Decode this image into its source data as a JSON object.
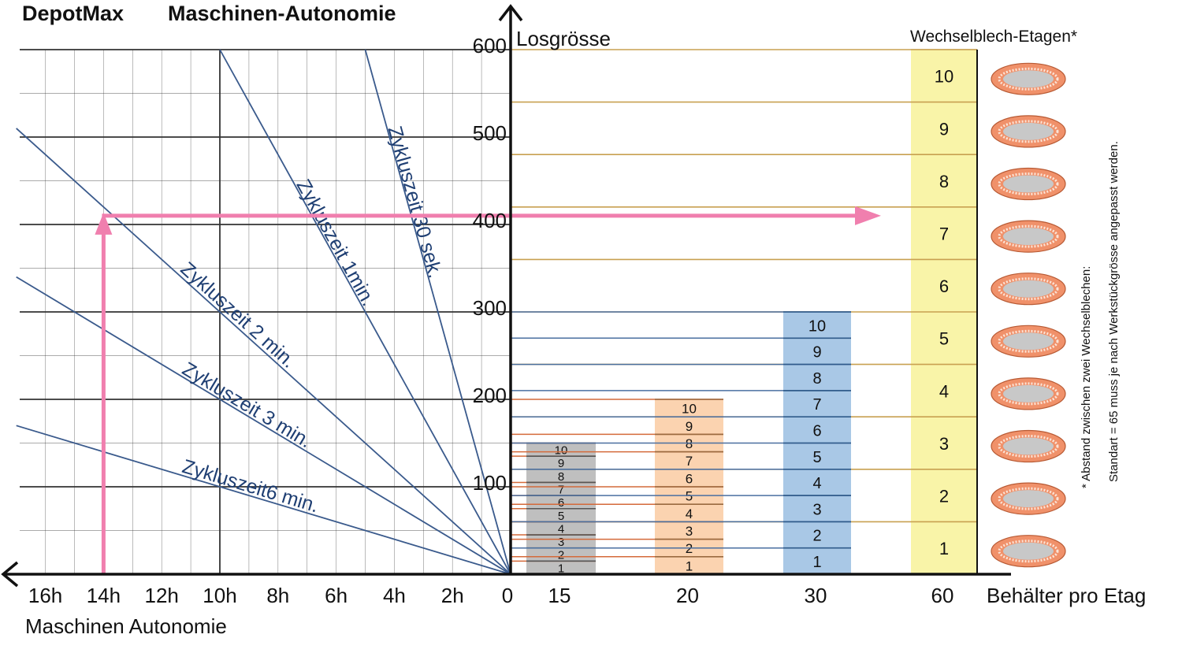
{
  "title": {
    "brand": "DepotMax",
    "subtitle": "Maschinen-Autonomie"
  },
  "colors": {
    "grid": "#333333",
    "slope": "#3a5a8c",
    "slope_text": "#1f3f73",
    "highlight": "#f07fae",
    "gold_line": "#c8a050",
    "orange_line": "#d46a3a",
    "blue_line": "#4a6fa0",
    "stack_15": "#bfbfbf",
    "stack_20": "#fbd3b0",
    "stack_30": "#a9c8e6",
    "stack_60": "#f9f4a8",
    "plate_ring": "#f0916a",
    "plate_center": "#c8c8c8"
  },
  "chart_data": {
    "type": "line",
    "title": "Maschinen-Autonomie",
    "ylabel": "Losgrösse",
    "xlabel_left": "Maschinen Autonomie",
    "xlabel_right": "Behälter pro Etag",
    "ylim": [
      0,
      600
    ],
    "y_ticks": [
      "100",
      "200",
      "300",
      "400",
      "500",
      "600"
    ],
    "x_ticks_left": [
      "16h",
      "14h",
      "12h",
      "10h",
      "8h",
      "6h",
      "4h",
      "2h",
      "0"
    ],
    "x_ticks_left_values": [
      16,
      14,
      12,
      10,
      8,
      6,
      4,
      2,
      0
    ],
    "series": [
      {
        "name": "Zykluszeit 30 sek.",
        "cycle_min": 0.5,
        "x_hours": [
          0,
          5
        ],
        "y": [
          0,
          600
        ]
      },
      {
        "name": "Zykluszeit 1min.",
        "cycle_min": 1,
        "x_hours": [
          0,
          10
        ],
        "y": [
          0,
          600
        ]
      },
      {
        "name": "Zykluszeit 2 min.",
        "cycle_min": 2,
        "x_hours": [
          0,
          17
        ],
        "y": [
          0,
          510
        ]
      },
      {
        "name": "Zykluszeit 3 min.",
        "cycle_min": 3,
        "x_hours": [
          0,
          17
        ],
        "y": [
          0,
          340
        ]
      },
      {
        "name": "Zykluszeit6 min.",
        "cycle_min": 6,
        "x_hours": [
          0,
          17
        ],
        "y": [
          0,
          170
        ]
      }
    ],
    "highlight_path": {
      "x_hours": 14,
      "y": 410
    },
    "stacks": [
      {
        "category": "15",
        "levels": [
          "1",
          "2",
          "3",
          "4",
          "5",
          "6",
          "7",
          "8",
          "9",
          "10"
        ],
        "max": 150
      },
      {
        "category": "20",
        "levels": [
          "1",
          "2",
          "3",
          "4",
          "5",
          "6",
          "7",
          "8",
          "9",
          "10"
        ],
        "max": 200
      },
      {
        "category": "30",
        "levels": [
          "1",
          "2",
          "3",
          "4",
          "5",
          "6",
          "7",
          "8",
          "9",
          "10"
        ],
        "max": 300
      },
      {
        "category": "60",
        "levels": [
          "1",
          "2",
          "3",
          "4",
          "5",
          "6",
          "7",
          "8",
          "9",
          "10"
        ],
        "max": 600
      }
    ],
    "stack_header": "Wechselblech-Etagen*",
    "footnote_line1": "* Abstand zwischen zwei Wechselblechen:",
    "footnote_line2": "Standart = 65 muss je nach Werkstückgrösse angepasst werden."
  }
}
